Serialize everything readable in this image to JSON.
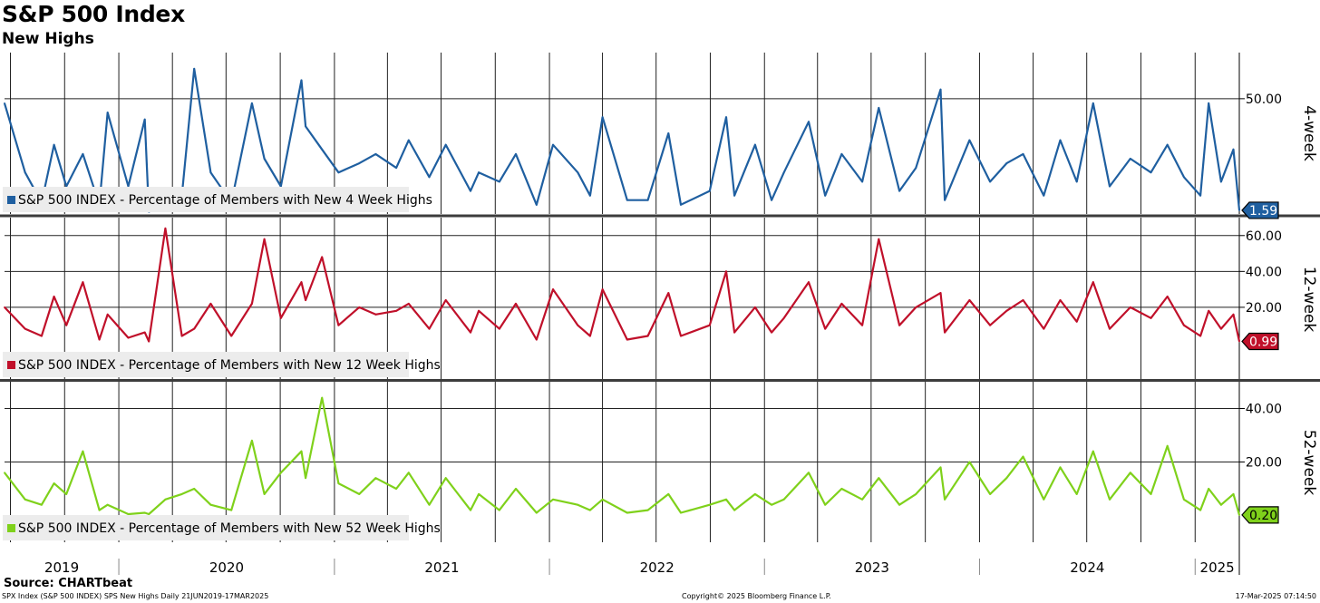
{
  "title": "S&P 500 Index",
  "subtitle": "New Highs",
  "footer": {
    "source": "Source: CHARTbeat",
    "left": "SPX Index (S&P 500 INDEX) SPS New Highs  Daily 21JUN2019-17MAR2025",
    "center": "Copyright© 2025 Bloomberg Finance L.P.",
    "right": "17-Mar-2025 07:14:50"
  },
  "colors": {
    "four_week": "#1f5fa0",
    "twelve_week": "#c0102a",
    "fifty_two_week": "#7fd11b"
  },
  "chart_data": [
    {
      "type": "line",
      "panel_label": "4-week",
      "x_range": [
        "2019-06-21",
        "2025-03-17"
      ],
      "x_tick_labels": [
        "2019",
        "2020",
        "2021",
        "2022",
        "2023",
        "2024",
        "2025"
      ],
      "y_ticks": [
        50
      ],
      "y_tick_labels": [
        "50.00"
      ],
      "ylim": [
        0,
        70
      ],
      "last_value_label": "1.59",
      "grid": true,
      "legend_position": "bottom-left",
      "series": [
        {
          "name": "S&P 500 INDEX - Percentage of Members with New 4 Week Highs",
          "color": "#1f5fa0",
          "x": [
            "2019-06-21",
            "2019-07-26",
            "2019-08-23",
            "2019-09-13",
            "2019-10-04",
            "2019-11-01",
            "2019-11-29",
            "2019-12-13",
            "2020-01-17",
            "2020-02-14",
            "2020-02-21",
            "2020-03-20",
            "2020-04-17",
            "2020-05-08",
            "2020-06-05",
            "2020-07-10",
            "2020-08-14",
            "2020-09-04",
            "2020-10-02",
            "2020-11-06",
            "2020-11-13",
            "2020-12-11",
            "2021-01-08",
            "2021-02-12",
            "2021-03-12",
            "2021-04-16",
            "2021-05-07",
            "2021-06-11",
            "2021-07-09",
            "2021-08-20",
            "2021-09-03",
            "2021-10-08",
            "2021-11-05",
            "2021-12-10",
            "2022-01-07",
            "2022-02-18",
            "2022-03-11",
            "2022-04-01",
            "2022-05-13",
            "2022-06-17",
            "2022-07-22",
            "2022-08-12",
            "2022-09-30",
            "2022-10-28",
            "2022-11-11",
            "2022-12-16",
            "2023-01-13",
            "2023-02-03",
            "2023-03-17",
            "2023-04-14",
            "2023-05-12",
            "2023-06-16",
            "2023-07-14",
            "2023-08-18",
            "2023-09-15",
            "2023-10-27",
            "2023-11-03",
            "2023-12-15",
            "2024-01-19",
            "2024-02-16",
            "2024-03-15",
            "2024-04-19",
            "2024-05-17",
            "2024-06-14",
            "2024-07-12",
            "2024-08-09",
            "2024-09-13",
            "2024-10-18",
            "2024-11-15",
            "2024-12-13",
            "2025-01-10",
            "2025-01-24",
            "2025-02-14",
            "2025-03-07",
            "2025-03-17"
          ],
          "values": [
            48,
            18,
            5,
            30,
            12,
            26,
            4,
            44,
            12,
            41,
            1,
            4,
            8,
            63,
            18,
            5,
            48,
            24,
            12,
            58,
            38,
            28,
            18,
            22,
            26,
            20,
            32,
            16,
            30,
            10,
            18,
            14,
            26,
            4,
            30,
            18,
            8,
            42,
            6,
            6,
            35,
            4,
            10,
            42,
            8,
            30,
            6,
            18,
            40,
            8,
            26,
            14,
            46,
            10,
            20,
            54,
            6,
            32,
            14,
            22,
            26,
            8,
            32,
            14,
            48,
            12,
            24,
            18,
            30,
            16,
            8,
            48,
            14,
            28,
            1.59
          ]
        }
      ]
    },
    {
      "type": "line",
      "panel_label": "12-week",
      "x_range": [
        "2019-06-21",
        "2025-03-17"
      ],
      "x_tick_labels": [
        "2019",
        "2020",
        "2021",
        "2022",
        "2023",
        "2024",
        "2025"
      ],
      "y_ticks": [
        20,
        40,
        60
      ],
      "y_tick_labels": [
        "20.00",
        "40.00",
        "60.00"
      ],
      "ylim": [
        -20,
        70
      ],
      "last_value_label": "0.99",
      "grid": true,
      "legend_position": "bottom-left",
      "series": [
        {
          "name": "S&P 500 INDEX - Percentage of Members with New 12 Week Highs",
          "color": "#c0102a",
          "x": [
            "2019-06-21",
            "2019-07-26",
            "2019-08-23",
            "2019-09-13",
            "2019-10-04",
            "2019-11-01",
            "2019-11-29",
            "2019-12-13",
            "2020-01-17",
            "2020-02-14",
            "2020-02-21",
            "2020-03-20",
            "2020-04-17",
            "2020-05-08",
            "2020-06-05",
            "2020-07-10",
            "2020-08-14",
            "2020-09-04",
            "2020-10-02",
            "2020-11-06",
            "2020-11-13",
            "2020-12-11",
            "2021-01-08",
            "2021-02-12",
            "2021-03-12",
            "2021-04-16",
            "2021-05-07",
            "2021-06-11",
            "2021-07-09",
            "2021-08-20",
            "2021-09-03",
            "2021-10-08",
            "2021-11-05",
            "2021-12-10",
            "2022-01-07",
            "2022-02-18",
            "2022-03-11",
            "2022-04-01",
            "2022-05-13",
            "2022-06-17",
            "2022-07-22",
            "2022-08-12",
            "2022-09-30",
            "2022-10-28",
            "2022-11-11",
            "2022-12-16",
            "2023-01-13",
            "2023-02-03",
            "2023-03-17",
            "2023-04-14",
            "2023-05-12",
            "2023-06-16",
            "2023-07-14",
            "2023-08-18",
            "2023-09-15",
            "2023-10-27",
            "2023-11-03",
            "2023-12-15",
            "2024-01-19",
            "2024-02-16",
            "2024-03-15",
            "2024-04-19",
            "2024-05-17",
            "2024-06-14",
            "2024-07-12",
            "2024-08-09",
            "2024-09-13",
            "2024-10-18",
            "2024-11-15",
            "2024-12-13",
            "2025-01-10",
            "2025-01-24",
            "2025-02-14",
            "2025-03-07",
            "2025-03-17"
          ],
          "values": [
            20,
            8,
            4,
            26,
            10,
            34,
            2,
            16,
            3,
            6,
            1,
            64,
            4,
            8,
            22,
            4,
            22,
            58,
            14,
            34,
            24,
            48,
            10,
            20,
            16,
            18,
            22,
            8,
            24,
            6,
            18,
            8,
            22,
            2,
            30,
            10,
            4,
            30,
            2,
            4,
            28,
            4,
            10,
            40,
            6,
            20,
            6,
            14,
            34,
            8,
            22,
            10,
            58,
            10,
            20,
            28,
            6,
            24,
            10,
            18,
            24,
            8,
            24,
            12,
            34,
            8,
            20,
            14,
            26,
            10,
            4,
            18,
            8,
            16,
            0.99
          ]
        }
      ]
    },
    {
      "type": "line",
      "panel_label": "52-week",
      "x_range": [
        "2019-06-21",
        "2025-03-17"
      ],
      "x_tick_labels": [
        "2019",
        "2020",
        "2021",
        "2022",
        "2023",
        "2024",
        "2025"
      ],
      "y_ticks": [
        20,
        40
      ],
      "y_tick_labels": [
        "20.00",
        "40.00"
      ],
      "ylim": [
        -10,
        50
      ],
      "last_value_label": "0.20",
      "grid": true,
      "legend_position": "bottom-left",
      "series": [
        {
          "name": "S&P 500 INDEX - Percentage of Members with New 52 Week Highs",
          "color": "#7fd11b",
          "x": [
            "2019-06-21",
            "2019-07-26",
            "2019-08-23",
            "2019-09-13",
            "2019-10-04",
            "2019-11-01",
            "2019-11-29",
            "2019-12-13",
            "2020-01-17",
            "2020-02-14",
            "2020-02-21",
            "2020-03-20",
            "2020-04-17",
            "2020-05-08",
            "2020-06-05",
            "2020-07-10",
            "2020-08-14",
            "2020-09-04",
            "2020-10-02",
            "2020-11-06",
            "2020-11-13",
            "2020-12-11",
            "2021-01-08",
            "2021-02-12",
            "2021-03-12",
            "2021-04-16",
            "2021-05-07",
            "2021-06-11",
            "2021-07-09",
            "2021-08-20",
            "2021-09-03",
            "2021-10-08",
            "2021-11-05",
            "2021-12-10",
            "2022-01-07",
            "2022-02-18",
            "2022-03-11",
            "2022-04-01",
            "2022-05-13",
            "2022-06-17",
            "2022-07-22",
            "2022-08-12",
            "2022-09-30",
            "2022-10-28",
            "2022-11-11",
            "2022-12-16",
            "2023-01-13",
            "2023-02-03",
            "2023-03-17",
            "2023-04-14",
            "2023-05-12",
            "2023-06-16",
            "2023-07-14",
            "2023-08-18",
            "2023-09-15",
            "2023-10-27",
            "2023-11-03",
            "2023-12-15",
            "2024-01-19",
            "2024-02-16",
            "2024-03-15",
            "2024-04-19",
            "2024-05-17",
            "2024-06-14",
            "2024-07-12",
            "2024-08-09",
            "2024-09-13",
            "2024-10-18",
            "2024-11-15",
            "2024-12-13",
            "2025-01-10",
            "2025-01-24",
            "2025-02-14",
            "2025-03-07",
            "2025-03-17"
          ],
          "values": [
            16,
            6,
            4,
            12,
            8,
            24,
            2,
            4,
            0.5,
            1,
            0.5,
            6,
            8,
            10,
            4,
            2,
            28,
            8,
            16,
            24,
            14,
            44,
            12,
            8,
            14,
            10,
            16,
            4,
            14,
            2,
            8,
            2,
            10,
            1,
            6,
            4,
            2,
            6,
            1,
            2,
            8,
            1,
            4,
            6,
            2,
            8,
            4,
            6,
            16,
            4,
            10,
            6,
            14,
            4,
            8,
            18,
            6,
            20,
            8,
            14,
            22,
            6,
            18,
            8,
            24,
            6,
            16,
            8,
            26,
            6,
            2,
            10,
            4,
            8,
            0.2
          ]
        }
      ]
    }
  ]
}
